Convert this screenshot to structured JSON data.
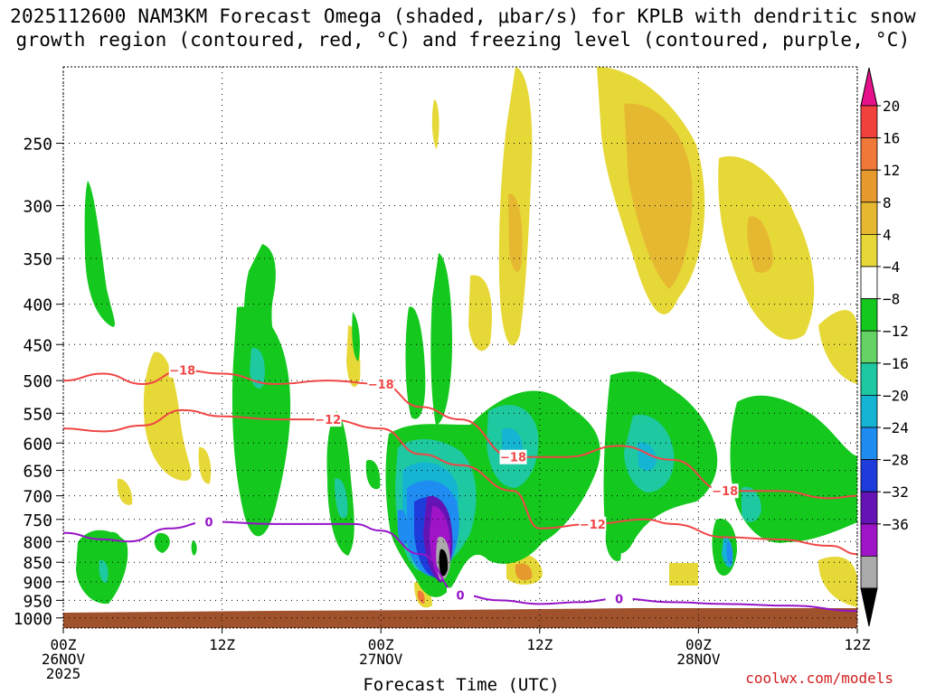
{
  "title": {
    "line1": "2025112600 NAM3KM Forecast Omega (shaded, μbar/s) for KPLB with dendritic snow",
    "line2": "growth region (contoured, red, °C) and freezing level (contoured, purple, °C)"
  },
  "credit": "coolwx.com/models",
  "chart_data": {
    "type": "heatmap",
    "title": "2025112600 NAM3KM Forecast Omega (shaded, μbar/s) for KPLB with dendritic snow growth region (contoured, red, °C) and freezing level (contoured, purple, °C)",
    "xlabel": "Forecast Time (UTC)",
    "ylabel": "",
    "y_axis": {
      "scale": "log-pressure",
      "ticks": [
        250,
        300,
        350,
        400,
        450,
        500,
        550,
        600,
        650,
        700,
        750,
        800,
        850,
        900,
        950,
        1000
      ],
      "range": [
        1030,
        200
      ]
    },
    "x_axis": {
      "range_hours": [
        0,
        60
      ],
      "ticks": [
        {
          "hour": 0,
          "lines": [
            "00Z",
            "26NOV",
            "2025"
          ]
        },
        {
          "hour": 12,
          "lines": [
            "12Z"
          ]
        },
        {
          "hour": 24,
          "lines": [
            "00Z",
            "27NOV"
          ]
        },
        {
          "hour": 36,
          "lines": [
            "12Z"
          ]
        },
        {
          "hour": 48,
          "lines": [
            "00Z",
            "28NOV"
          ]
        },
        {
          "hour": 60,
          "lines": [
            "12Z"
          ]
        }
      ]
    },
    "grid": true,
    "colorbar": {
      "unit": "μbar/s",
      "labels": [
        "20",
        "16",
        "12",
        "8",
        "4",
        "−4",
        "−8",
        "−12",
        "−16",
        "−20",
        "−24",
        "−28",
        "−32",
        "−36"
      ],
      "colors": [
        "#e6108a",
        "#f0413c",
        "#f07838",
        "#e69a2e",
        "#e6b832",
        "#e6d837",
        "#ffffff",
        "#14c81e",
        "#64d264",
        "#1ec8a0",
        "#14b4d2",
        "#1e8cf0",
        "#1e3cdc",
        "#6414b4",
        "#a014c8",
        "#aaaaaa",
        "#000000"
      ]
    },
    "contours": [
      {
        "name": "-18",
        "color": "#f04646",
        "labels": [
          "−18",
          "−18",
          "−18",
          "−18"
        ],
        "points": [
          [
            0,
            500
          ],
          [
            3,
            490
          ],
          [
            6,
            505
          ],
          [
            9,
            485
          ],
          [
            12,
            490
          ],
          [
            16,
            505
          ],
          [
            20,
            500
          ],
          [
            24,
            505
          ],
          [
            27,
            540
          ],
          [
            30,
            560
          ],
          [
            34,
            625
          ],
          [
            38,
            625
          ],
          [
            42,
            605
          ],
          [
            46,
            630
          ],
          [
            50,
            690
          ],
          [
            54,
            690
          ],
          [
            58,
            705
          ],
          [
            60,
            700
          ]
        ]
      },
      {
        "name": "-12",
        "color": "#f04646",
        "labels": [
          "−12",
          "−12"
        ],
        "points": [
          [
            0,
            575
          ],
          [
            3,
            580
          ],
          [
            6,
            570
          ],
          [
            9,
            545
          ],
          [
            12,
            555
          ],
          [
            16,
            560
          ],
          [
            20,
            560
          ],
          [
            24,
            575
          ],
          [
            27,
            620
          ],
          [
            30,
            640
          ],
          [
            34,
            690
          ],
          [
            36,
            770
          ],
          [
            40,
            760
          ],
          [
            44,
            750
          ],
          [
            46,
            760
          ],
          [
            50,
            790
          ],
          [
            54,
            795
          ],
          [
            58,
            810
          ],
          [
            60,
            830
          ]
        ]
      },
      {
        "name": "0",
        "color": "#9614c8",
        "labels": [
          "0",
          "0",
          "0"
        ],
        "points": [
          [
            0,
            780
          ],
          [
            3,
            795
          ],
          [
            5,
            800
          ],
          [
            8,
            770
          ],
          [
            11,
            755
          ],
          [
            16,
            760
          ],
          [
            22,
            760
          ],
          [
            24,
            775
          ],
          [
            27,
            830
          ],
          [
            30,
            935
          ],
          [
            33,
            950
          ],
          [
            36,
            960
          ],
          [
            39,
            955
          ],
          [
            42,
            945
          ],
          [
            46,
            955
          ],
          [
            50,
            960
          ],
          [
            55,
            965
          ],
          [
            60,
            980
          ]
        ]
      }
    ],
    "shaded_regions_note": "filled omega contours (μbar/s): positive (yellow/orange) aloft, negative (green/cyan/blue/purple) in low-mid levels"
  }
}
